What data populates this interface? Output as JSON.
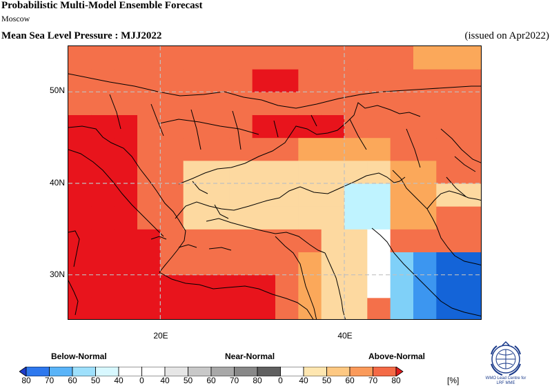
{
  "header": {
    "title": "Probabilistic Multi-Model Ensemble Forecast",
    "subtitle": "Moscow",
    "map_title": "Mean Sea Level Pressure : MJJ2022",
    "issued": "(issued on Apr2022)"
  },
  "map": {
    "lat_labels": [
      "50N",
      "40N",
      "30N"
    ],
    "lon_labels": [
      "20E",
      "40E"
    ],
    "lat_values": [
      50,
      40,
      30
    ],
    "lon_values": [
      20,
      40
    ],
    "extent": {
      "lon_min": 10,
      "lon_max": 55,
      "lat_min": 25,
      "lat_max": 55
    },
    "colors": {
      "above_70_80": "#e8141c",
      "above_60_70": "#f4704a",
      "above_50_60": "#fba85a",
      "above_40_50": "#fdd9a0",
      "normal": "#ffffff",
      "below_40_50": "#bff3ff",
      "below_50_60": "#7fd0f8",
      "below_60_70": "#3c96f0",
      "below_70_80": "#1464d8"
    }
  },
  "legend": {
    "below_label": "Below-Normal",
    "near_label": "Near-Normal",
    "above_label": "Above-Normal",
    "unit": "[%]",
    "ticks": [
      "80",
      "70",
      "60",
      "50",
      "40",
      "0",
      "40",
      "50",
      "60",
      "70",
      "80",
      "0",
      "40",
      "50",
      "60",
      "70",
      "80"
    ],
    "colors": [
      "#1e3cc8",
      "#2e78ee",
      "#5ab4f8",
      "#9ee0fc",
      "#d8f8ff",
      "#ffffff",
      "#ffffff",
      "#e6e6e6",
      "#c8c8c8",
      "#a8a8a8",
      "#888888",
      "#606060",
      "#ffffff",
      "#fee6b0",
      "#fdc882",
      "#fa9a5a",
      "#f46a46",
      "#e01c1c"
    ]
  },
  "logo": {
    "text_line1": "WMO Lead Centre for",
    "text_line2": "LRF MME"
  }
}
